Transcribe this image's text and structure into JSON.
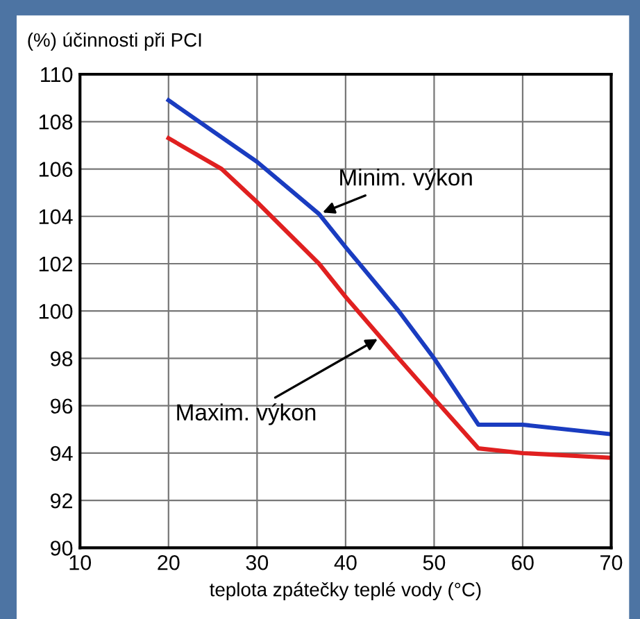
{
  "chart_data": {
    "type": "line",
    "ylabel": "(%) účinnosti při PCI",
    "xlabel": "teplota zpátečky teplé vody (°C)",
    "xlim": [
      10,
      70
    ],
    "xticks": [
      10,
      20,
      30,
      40,
      50,
      60,
      70
    ],
    "ylim": [
      90,
      110
    ],
    "yticks": [
      90,
      92,
      94,
      96,
      98,
      100,
      102,
      104,
      106,
      108,
      110
    ],
    "grid": true,
    "legend": false,
    "line_style": "solid",
    "marker": "none",
    "series": [
      {
        "color": "#1a3cc0",
        "x": [
          20,
          25,
          30,
          37,
          40,
          46,
          50,
          55,
          60,
          70
        ],
        "values": [
          108.9,
          107.6,
          106.3,
          104.1,
          102.7,
          100,
          98,
          95.2,
          95.2,
          94.8
        ]
      },
      {
        "color": "#e02020",
        "x": [
          20,
          26,
          30,
          37,
          40,
          46,
          50,
          55,
          60,
          70
        ],
        "values": [
          107.3,
          106,
          104.6,
          102,
          100.6,
          98,
          96.3,
          94.2,
          94.0,
          93.8
        ]
      }
    ],
    "annotations": [
      {
        "text": "Minim. výkon",
        "x": 37,
        "y": 104.1
      },
      {
        "text": "Maxim. výkon",
        "x": 44,
        "y": 98.9
      }
    ]
  }
}
